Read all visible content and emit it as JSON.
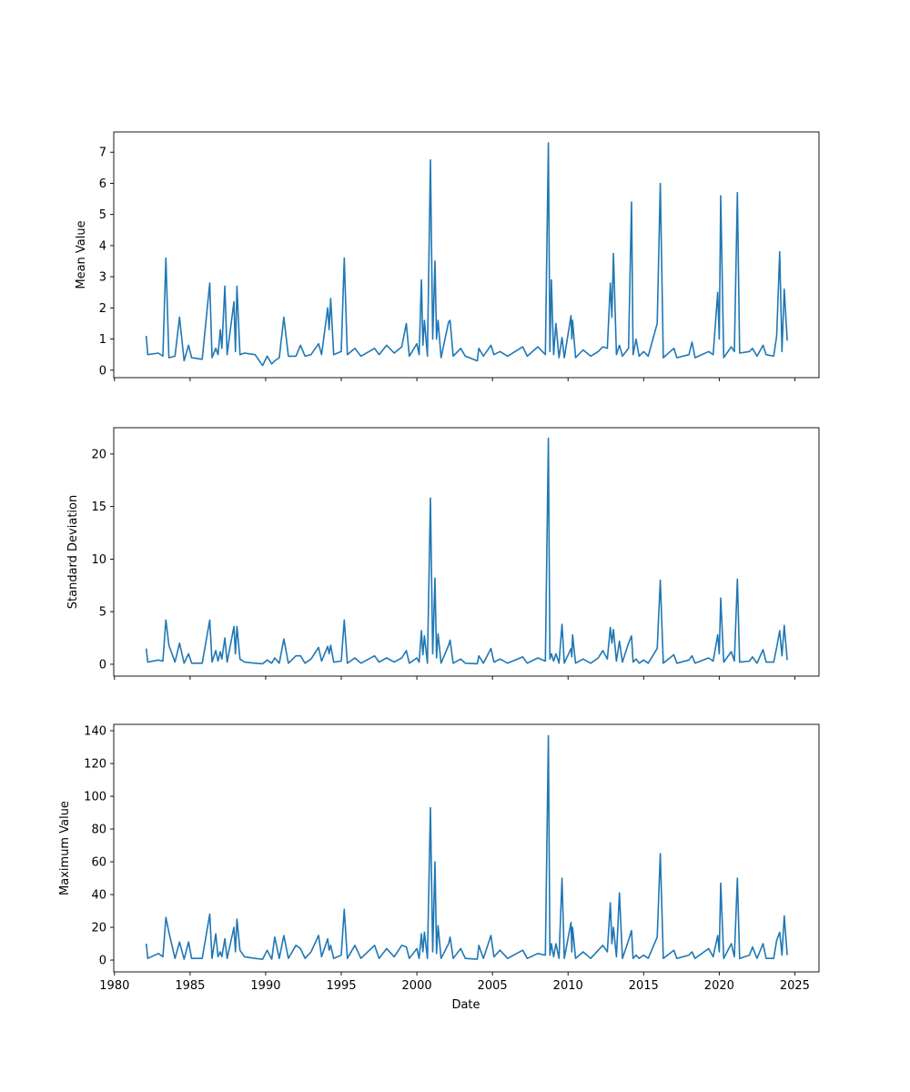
{
  "chart_data": {
    "type": "line",
    "layout": "3 stacked subplots sharing x axis",
    "xlabel": "Date",
    "xlim": [
      1979.95,
      2026.6
    ],
    "xticks": [
      1980,
      1985,
      1990,
      1995,
      2000,
      2005,
      2010,
      2015,
      2020,
      2025
    ],
    "line_color": "#1f77b4",
    "grid": false,
    "panels": [
      {
        "key": "mean",
        "ylabel": "Mean Value",
        "ylim": [
          -0.24,
          7.65
        ],
        "yticks": [
          0,
          1,
          2,
          3,
          4,
          5,
          6,
          7
        ]
      },
      {
        "key": "std",
        "ylabel": "Standard Deviation",
        "ylim": [
          -1.13,
          22.5
        ],
        "yticks": [
          0,
          5,
          10,
          15,
          20
        ]
      },
      {
        "key": "max",
        "ylabel": "Maximum Value",
        "ylim": [
          -7.2,
          143.9
        ],
        "yticks": [
          0,
          20,
          40,
          60,
          80,
          100,
          120,
          140
        ]
      }
    ],
    "columns": [
      "year",
      "mean",
      "std",
      "max"
    ],
    "rows": [
      [
        1982.1,
        1.1,
        1.5,
        10
      ],
      [
        1982.2,
        0.5,
        0.2,
        1
      ],
      [
        1982.9,
        0.55,
        0.4,
        4
      ],
      [
        1983.2,
        0.45,
        0.3,
        2
      ],
      [
        1983.4,
        3.6,
        4.2,
        26
      ],
      [
        1983.6,
        0.4,
        1.8,
        17
      ],
      [
        1984.0,
        0.45,
        0.2,
        1
      ],
      [
        1984.3,
        1.7,
        2.0,
        11
      ],
      [
        1984.6,
        0.3,
        0.1,
        0.5
      ],
      [
        1984.9,
        0.8,
        1.0,
        11
      ],
      [
        1985.1,
        0.4,
        0.1,
        1
      ],
      [
        1985.8,
        0.35,
        0.1,
        1
      ],
      [
        1986.3,
        2.8,
        4.2,
        28
      ],
      [
        1986.45,
        0.4,
        0.2,
        1
      ],
      [
        1986.7,
        0.7,
        1.3,
        16
      ],
      [
        1986.85,
        0.5,
        0.3,
        2
      ],
      [
        1987.0,
        1.3,
        1.2,
        5
      ],
      [
        1987.1,
        0.7,
        0.5,
        2
      ],
      [
        1987.3,
        2.7,
        2.5,
        13
      ],
      [
        1987.45,
        0.5,
        0.2,
        1
      ],
      [
        1987.9,
        2.2,
        3.6,
        20
      ],
      [
        1988.0,
        0.6,
        1,
        5
      ],
      [
        1988.1,
        2.7,
        3.6,
        25
      ],
      [
        1988.3,
        0.5,
        0.5,
        6
      ],
      [
        1988.6,
        0.55,
        0.2,
        2
      ],
      [
        1989.3,
        0.5,
        0.1,
        1
      ],
      [
        1989.8,
        0.15,
        0.05,
        0.5
      ],
      [
        1990.1,
        0.45,
        0.4,
        6
      ],
      [
        1990.4,
        0.2,
        0.1,
        0.5
      ],
      [
        1990.6,
        0.3,
        0.6,
        14
      ],
      [
        1990.9,
        0.4,
        0.1,
        1
      ],
      [
        1991.2,
        1.7,
        2.4,
        15
      ],
      [
        1991.5,
        0.45,
        0.1,
        1
      ],
      [
        1992.0,
        0.45,
        0.8,
        9
      ],
      [
        1992.3,
        0.8,
        0.8,
        7
      ],
      [
        1992.6,
        0.45,
        0.1,
        1
      ],
      [
        1993.0,
        0.5,
        0.5,
        5
      ],
      [
        1993.5,
        0.85,
        1.6,
        15
      ],
      [
        1993.7,
        0.5,
        0.3,
        2
      ],
      [
        1994.1,
        2.0,
        1.7,
        13
      ],
      [
        1994.2,
        1.3,
        1.0,
        6
      ],
      [
        1994.3,
        2.3,
        1.8,
        9
      ],
      [
        1994.5,
        0.5,
        0.2,
        1
      ],
      [
        1995.0,
        0.6,
        0.3,
        3
      ],
      [
        1995.2,
        3.6,
        4.2,
        31
      ],
      [
        1995.4,
        0.5,
        0.1,
        1
      ],
      [
        1995.9,
        0.7,
        0.6,
        9
      ],
      [
        1996.3,
        0.45,
        0.1,
        1
      ],
      [
        1997.2,
        0.7,
        0.8,
        9
      ],
      [
        1997.5,
        0.5,
        0.2,
        1
      ],
      [
        1998.0,
        0.8,
        0.6,
        7
      ],
      [
        1998.5,
        0.55,
        0.2,
        2
      ],
      [
        1999.0,
        0.75,
        0.6,
        9
      ],
      [
        1999.3,
        1.5,
        1.3,
        8
      ],
      [
        1999.5,
        0.45,
        0.1,
        1
      ],
      [
        2000.0,
        0.85,
        0.6,
        7
      ],
      [
        2000.15,
        0.5,
        0.2,
        1
      ],
      [
        2000.3,
        2.9,
        3.2,
        16
      ],
      [
        2000.4,
        0.8,
        0.9,
        5
      ],
      [
        2000.5,
        1.6,
        2.7,
        17
      ],
      [
        2000.7,
        0.45,
        0.1,
        1
      ],
      [
        2000.9,
        6.75,
        15.8,
        93
      ],
      [
        2001.05,
        1.0,
        1.0,
        5
      ],
      [
        2001.2,
        3.5,
        8.2,
        60
      ],
      [
        2001.3,
        1.0,
        0.6,
        4
      ],
      [
        2001.4,
        1.6,
        2.9,
        21
      ],
      [
        2001.6,
        0.4,
        0.1,
        1
      ],
      [
        2002.1,
        1.55,
        1.8,
        10
      ],
      [
        2002.2,
        1.6,
        2.3,
        14
      ],
      [
        2002.4,
        0.45,
        0.1,
        1
      ],
      [
        2002.9,
        0.7,
        0.5,
        7
      ],
      [
        2003.2,
        0.45,
        0.1,
        1
      ],
      [
        2004.0,
        0.3,
        0.05,
        0.5
      ],
      [
        2004.1,
        0.7,
        0.8,
        9
      ],
      [
        2004.4,
        0.45,
        0.1,
        1
      ],
      [
        2004.9,
        0.8,
        1.5,
        15
      ],
      [
        2005.1,
        0.5,
        0.2,
        2
      ],
      [
        2005.5,
        0.6,
        0.5,
        6
      ],
      [
        2006.0,
        0.45,
        0.1,
        1
      ],
      [
        2007.0,
        0.75,
        0.7,
        6
      ],
      [
        2007.3,
        0.45,
        0.1,
        1
      ],
      [
        2008.0,
        0.75,
        0.6,
        4
      ],
      [
        2008.5,
        0.5,
        0.3,
        3
      ],
      [
        2008.7,
        7.3,
        21.5,
        137
      ],
      [
        2008.8,
        0.6,
        0.5,
        3
      ],
      [
        2008.9,
        2.9,
        1.0,
        10
      ],
      [
        2009.05,
        0.5,
        0.3,
        2
      ],
      [
        2009.2,
        1.5,
        1.0,
        10
      ],
      [
        2009.4,
        0.4,
        0.1,
        1
      ],
      [
        2009.6,
        1.05,
        3.8,
        50
      ],
      [
        2009.75,
        0.4,
        0.1,
        1
      ],
      [
        2010.2,
        1.75,
        1.5,
        23
      ],
      [
        2010.25,
        1.0,
        0.7,
        5
      ],
      [
        2010.3,
        1.6,
        2.8,
        20
      ],
      [
        2010.5,
        0.4,
        0.1,
        1
      ],
      [
        2011.0,
        0.65,
        0.5,
        5
      ],
      [
        2011.5,
        0.45,
        0.1,
        1
      ],
      [
        2012.0,
        0.6,
        0.6,
        6
      ],
      [
        2012.3,
        0.75,
        1.3,
        9
      ],
      [
        2012.6,
        0.7,
        0.5,
        5
      ],
      [
        2012.8,
        2.8,
        3.5,
        35
      ],
      [
        2012.9,
        1.7,
        2.0,
        10
      ],
      [
        2013.0,
        3.75,
        3.3,
        20
      ],
      [
        2013.2,
        0.5,
        0.3,
        2
      ],
      [
        2013.4,
        0.8,
        2.2,
        41
      ],
      [
        2013.6,
        0.45,
        0.2,
        1
      ],
      [
        2014.0,
        0.7,
        2.0,
        12
      ],
      [
        2014.2,
        5.4,
        2.7,
        18
      ],
      [
        2014.3,
        0.5,
        0.2,
        1
      ],
      [
        2014.5,
        1.0,
        0.5,
        3
      ],
      [
        2014.7,
        0.45,
        0.1,
        1
      ],
      [
        2015.0,
        0.6,
        0.4,
        3
      ],
      [
        2015.3,
        0.45,
        0.1,
        1
      ],
      [
        2015.9,
        1.5,
        1.5,
        14
      ],
      [
        2016.1,
        6.0,
        8.0,
        65
      ],
      [
        2016.3,
        0.4,
        0.1,
        1
      ],
      [
        2017.0,
        0.7,
        0.9,
        6
      ],
      [
        2017.2,
        0.4,
        0.1,
        1
      ],
      [
        2018.0,
        0.5,
        0.4,
        3
      ],
      [
        2018.2,
        0.9,
        0.8,
        5
      ],
      [
        2018.4,
        0.4,
        0.1,
        1
      ],
      [
        2019.3,
        0.6,
        0.6,
        7
      ],
      [
        2019.6,
        0.5,
        0.3,
        2
      ],
      [
        2019.9,
        2.5,
        2.8,
        15
      ],
      [
        2020.0,
        1.0,
        1.0,
        5
      ],
      [
        2020.1,
        5.6,
        6.3,
        47
      ],
      [
        2020.3,
        0.4,
        0.2,
        1
      ],
      [
        2020.8,
        0.75,
        1.2,
        10
      ],
      [
        2021.0,
        0.6,
        0.3,
        2
      ],
      [
        2021.2,
        5.7,
        8.1,
        50
      ],
      [
        2021.35,
        0.55,
        0.2,
        1
      ],
      [
        2022.0,
        0.6,
        0.3,
        3
      ],
      [
        2022.2,
        0.7,
        0.7,
        8
      ],
      [
        2022.5,
        0.45,
        0.1,
        1
      ],
      [
        2022.9,
        0.8,
        1.4,
        10
      ],
      [
        2023.1,
        0.5,
        0.2,
        1
      ],
      [
        2023.6,
        0.45,
        0.2,
        1
      ],
      [
        2023.8,
        1.1,
        1.6,
        12
      ],
      [
        2024.0,
        3.8,
        3.2,
        17
      ],
      [
        2024.15,
        0.6,
        0.8,
        3
      ],
      [
        2024.3,
        2.6,
        3.7,
        27
      ],
      [
        2024.5,
        0.95,
        0.4,
        3
      ]
    ]
  }
}
